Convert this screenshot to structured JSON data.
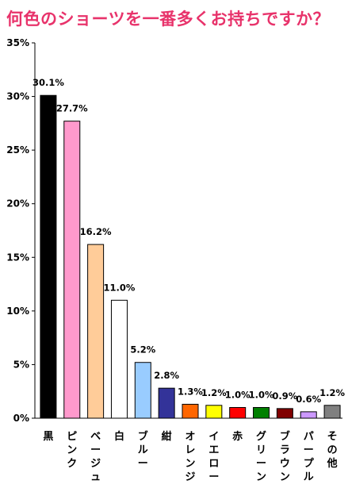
{
  "chart_data": {
    "type": "bar",
    "title": "何色のショーツを一番多くお持ちですか？",
    "xlabel": "",
    "ylabel": "",
    "ylim": [
      0,
      35
    ],
    "y_ticks": [
      "0%",
      "5%",
      "10%",
      "15%",
      "20%",
      "25%",
      "30%",
      "35%"
    ],
    "grid": false,
    "categories": [
      "黒",
      "ピンク",
      "ベージュ",
      "白",
      "ブルー",
      "紺",
      "オレンジ",
      "イエロー",
      "赤",
      "グリーン",
      "ブラウン",
      "パープル",
      "その他"
    ],
    "values": [
      30.1,
      27.7,
      16.2,
      11.0,
      5.2,
      2.8,
      1.3,
      1.2,
      1.0,
      1.0,
      0.9,
      0.6,
      1.2
    ],
    "value_labels": [
      "30.1%",
      "27.7%",
      "16.2%",
      "11.0%",
      "5.2%",
      "2.8%",
      "1.3%",
      "1.2%",
      "1.0%",
      "1.0%",
      "0.9%",
      "0.6%",
      "1.2%"
    ],
    "colors": [
      "#000000",
      "#ff99cc",
      "#ffcc99",
      "#ffffff",
      "#99ccff",
      "#333399",
      "#ff6600",
      "#ffff00",
      "#ff0000",
      "#008000",
      "#800000",
      "#cc99ff",
      "#808080"
    ]
  }
}
